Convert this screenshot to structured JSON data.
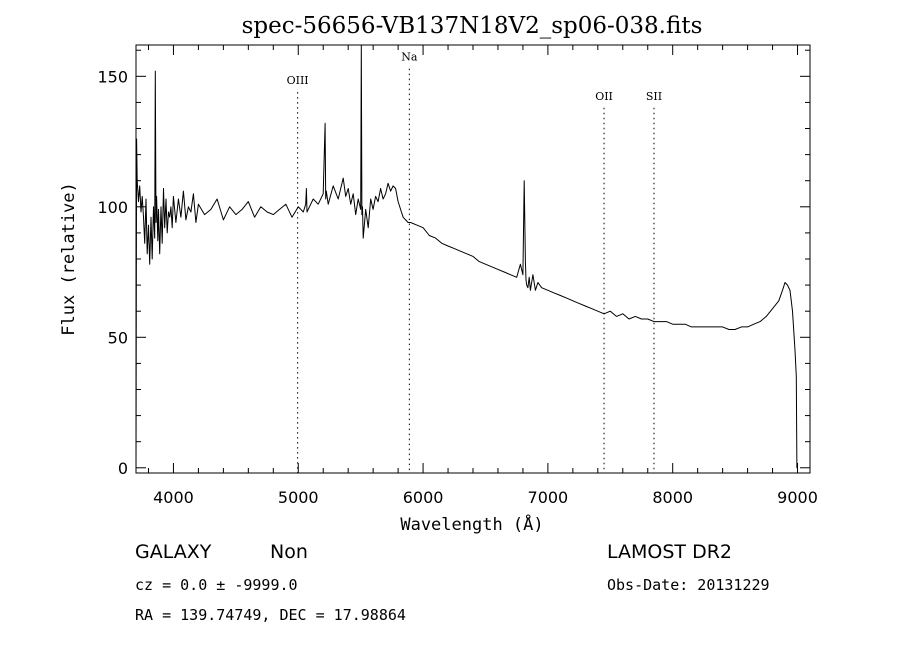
{
  "chart_data": {
    "type": "line",
    "title": "spec-56656-VB137N18V2_sp06-038.fits",
    "xlabel": "Wavelength (Å)",
    "ylabel": "Flux (relative)",
    "xlim": [
      3700,
      9100
    ],
    "ylim": [
      -2,
      162
    ],
    "x_ticks": [
      4000,
      5000,
      6000,
      7000,
      8000,
      9000
    ],
    "x_tick_labels": [
      "4000",
      "5000",
      "6000",
      "7000",
      "8000",
      "9000"
    ],
    "y_ticks": [
      0,
      50,
      100,
      150
    ],
    "y_tick_labels": [
      "0",
      "50",
      "100",
      "150"
    ],
    "grid": false,
    "legend": "none",
    "line_color": "#000000",
    "line_labels": [
      {
        "label": "OIII",
        "x": 4995,
        "label_y": 147
      },
      {
        "label": "Na",
        "x": 5890,
        "label_y": 156
      },
      {
        "label": "OII",
        "x": 7450,
        "label_y": 141
      },
      {
        "label": "SII",
        "x": 7850,
        "label_y": 141
      }
    ],
    "series": [
      {
        "x": [
          3700,
          3705,
          3710,
          3720,
          3730,
          3740,
          3750,
          3760,
          3770,
          3780,
          3790,
          3800,
          3810,
          3820,
          3830,
          3840,
          3850,
          3855,
          3860,
          3865,
          3870,
          3875,
          3880,
          3890,
          3900,
          3910,
          3920,
          3930,
          3940,
          3950,
          3960,
          3970,
          3980,
          3990,
          4000,
          4020,
          4040,
          4060,
          4080,
          4100,
          4120,
          4140,
          4160,
          4180,
          4200,
          4250,
          4300,
          4350,
          4400,
          4450,
          4500,
          4550,
          4600,
          4650,
          4700,
          4750,
          4800,
          4850,
          4900,
          4950,
          5000,
          5040,
          5060,
          5065,
          5070,
          5080,
          5120,
          5160,
          5200,
          5215,
          5220,
          5225,
          5240,
          5280,
          5320,
          5360,
          5380,
          5400,
          5420,
          5440,
          5460,
          5480,
          5500,
          5505,
          5510,
          5515,
          5520,
          5540,
          5560,
          5580,
          5600,
          5620,
          5640,
          5660,
          5680,
          5700,
          5720,
          5740,
          5760,
          5780,
          5800,
          5820,
          5840,
          5860,
          5880,
          5900,
          5950,
          6000,
          6050,
          6100,
          6150,
          6200,
          6250,
          6300,
          6350,
          6400,
          6450,
          6500,
          6550,
          6600,
          6650,
          6700,
          6750,
          6780,
          6800,
          6810,
          6820,
          6825,
          6830,
          6840,
          6850,
          6860,
          6880,
          6900,
          6920,
          6950,
          7000,
          7050,
          7100,
          7150,
          7200,
          7250,
          7300,
          7350,
          7400,
          7450,
          7500,
          7550,
          7600,
          7650,
          7700,
          7750,
          7800,
          7850,
          7900,
          7950,
          8000,
          8050,
          8100,
          8150,
          8200,
          8250,
          8300,
          8350,
          8400,
          8450,
          8500,
          8550,
          8600,
          8650,
          8700,
          8750,
          8800,
          8850,
          8880,
          8900,
          8920,
          8940,
          8960,
          8980,
          8990,
          8995,
          9000
        ],
        "values": [
          -2,
          126,
          110,
          102,
          108,
          98,
          104,
          96,
          86,
          103,
          82,
          93,
          78,
          96,
          80,
          100,
          88,
          152,
          94,
          104,
          96,
          87,
          99,
          82,
          100,
          86,
          107,
          92,
          103,
          90,
          98,
          96,
          100,
          92,
          104,
          94,
          103,
          96,
          106,
          95,
          100,
          98,
          105,
          94,
          101,
          97,
          99,
          103,
          95,
          100,
          97,
          99,
          102,
          96,
          100,
          98,
          97,
          99,
          101,
          96,
          100,
          98,
          101,
          107,
          98,
          99,
          103,
          101,
          105,
          132,
          103,
          106,
          101,
          108,
          103,
          111,
          104,
          107,
          101,
          105,
          97,
          103,
          99,
          162,
          97,
          100,
          88,
          99,
          92,
          103,
          99,
          104,
          102,
          107,
          103,
          105,
          109,
          106,
          108,
          107,
          102,
          99,
          96,
          95,
          94,
          94,
          93,
          92,
          89,
          88,
          86,
          85,
          84,
          83,
          82,
          81,
          79,
          78,
          77,
          76,
          75,
          74,
          73,
          78,
          74,
          110,
          79,
          72,
          70,
          69,
          73,
          68,
          74,
          68,
          71,
          69,
          68,
          67,
          66,
          65,
          64,
          63,
          62,
          61,
          60,
          59,
          60,
          58,
          59,
          57,
          58,
          57,
          57,
          56,
          56,
          56,
          55,
          55,
          55,
          54,
          54,
          54,
          54,
          54,
          54,
          53,
          53,
          54,
          54,
          55,
          56,
          58,
          61,
          64,
          68,
          71,
          70,
          68,
          60,
          45,
          35,
          0,
          0
        ]
      }
    ]
  },
  "footer": {
    "left_line1_a": "GALAXY",
    "left_line1_b": "Non",
    "left_line2": "cz = 0.0 ± -9999.0",
    "left_line3": "RA = 139.74749, DEC =  17.98864",
    "right_line1": "LAMOST DR2",
    "right_line2": "Obs-Date: 20131229"
  }
}
